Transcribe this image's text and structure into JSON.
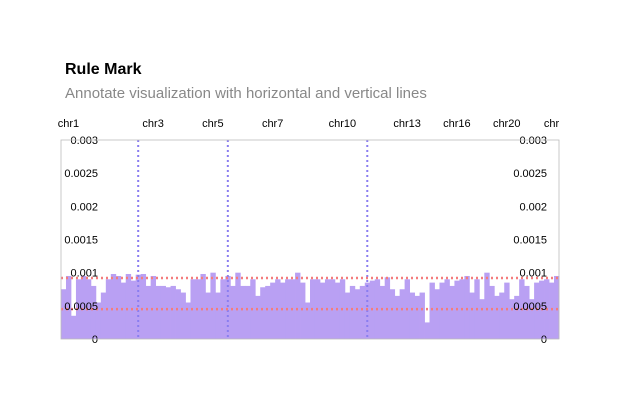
{
  "chart_data": {
    "type": "bar",
    "title": "Rule Mark",
    "subtitle": "Annotate visualization with horizontal and vertical lines",
    "ylim": [
      0,
      0.003
    ],
    "yticks": [
      {
        "value": 0,
        "label": "0"
      },
      {
        "value": 0.0005,
        "label": "0.0005"
      },
      {
        "value": 0.001,
        "label": "0.001"
      },
      {
        "value": 0.0015,
        "label": "0.0015"
      },
      {
        "value": 0.002,
        "label": "0.002"
      },
      {
        "value": 0.0025,
        "label": "0.0025"
      },
      {
        "value": 0.003,
        "label": "0.003"
      }
    ],
    "bin_count": 100,
    "xtick_labels": [
      {
        "label": "chr1",
        "bin": 1
      },
      {
        "label": "chr3",
        "bin": 18
      },
      {
        "label": "chr5",
        "bin": 30
      },
      {
        "label": "chr7",
        "bin": 42
      },
      {
        "label": "chr10",
        "bin": 56
      },
      {
        "label": "chr13",
        "bin": 69
      },
      {
        "label": "chr16",
        "bin": 79
      },
      {
        "label": "chr20",
        "bin": 89
      },
      {
        "label": "chr",
        "bin": 98
      }
    ],
    "values": [
      0.00075,
      0.00095,
      0.00035,
      0.0009,
      0.00095,
      0.0009,
      0.0008,
      0.00055,
      0.0007,
      0.0009,
      0.00098,
      0.00095,
      0.00085,
      0.00098,
      0.00088,
      0.00097,
      0.00098,
      0.0008,
      0.00095,
      0.0008,
      0.0008,
      0.00078,
      0.0008,
      0.00075,
      0.0007,
      0.00055,
      0.0009,
      0.0009,
      0.00098,
      0.0007,
      0.001,
      0.0007,
      0.0009,
      0.00095,
      0.0008,
      0.001,
      0.0008,
      0.0008,
      0.0009,
      0.00065,
      0.00078,
      0.0008,
      0.00085,
      0.0009,
      0.00085,
      0.0009,
      0.0009,
      0.001,
      0.00085,
      0.00055,
      0.0009,
      0.0009,
      0.00085,
      0.0009,
      0.0009,
      0.00085,
      0.0009,
      0.0007,
      0.0008,
      0.00075,
      0.0008,
      0.00085,
      0.00088,
      0.0009,
      0.0008,
      0.00093,
      0.00075,
      0.00065,
      0.00075,
      0.0009,
      0.0007,
      0.00065,
      0.0007,
      0.00025,
      0.00085,
      0.00075,
      0.00085,
      0.0009,
      0.0008,
      0.00088,
      0.0009,
      0.00095,
      0.0007,
      0.0009,
      0.0006,
      0.001,
      0.0008,
      0.00065,
      0.0007,
      0.00085,
      0.0006,
      0.00065,
      0.0009,
      0.0008,
      0.0006,
      0.00085,
      0.00088,
      0.0009,
      0.00085,
      0.00095
    ],
    "rules": {
      "vertical_bins": [
        15,
        33,
        61
      ],
      "horizontal_values": [
        0.00092,
        0.00045
      ],
      "vertical_color": "#8a7df0",
      "horizontal_color": "#f47c7c"
    },
    "bar_color": "#b9a0f3"
  }
}
